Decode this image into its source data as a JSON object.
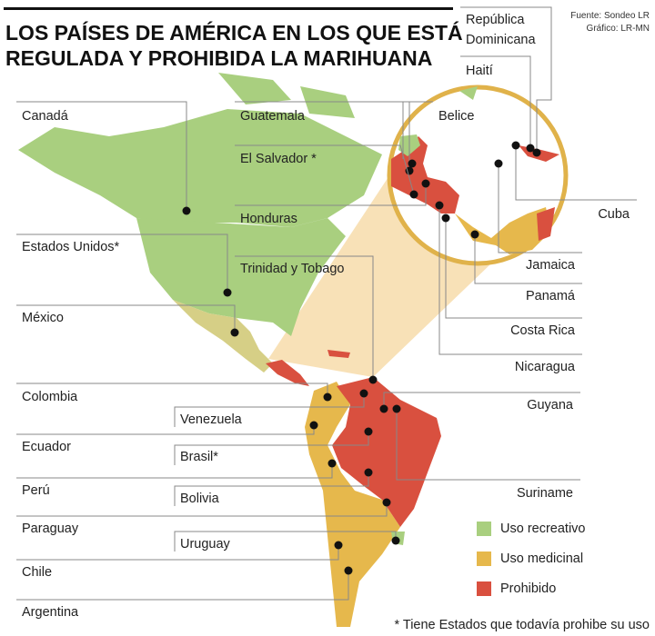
{
  "header": {
    "title_lines": [
      "LOS PAÍSES DE AMÉRICA EN LOS QUE ESTÁ",
      "REGULADA Y PROHIBIDA LA MARIHUANA"
    ],
    "source": "Fuente: Sondeo LR",
    "credit": "Gráfico: LR-MN"
  },
  "labels": [
    {
      "text": [
        "Canadá"
      ]
    },
    {
      "text": [
        "Estados Unidos*"
      ]
    },
    {
      "text": [
        "México"
      ]
    },
    {
      "text": [
        "Colombia"
      ]
    },
    {
      "text": [
        "Venezuela"
      ]
    },
    {
      "text": [
        "Ecuador"
      ]
    },
    {
      "text": [
        "Brasil*"
      ]
    },
    {
      "text": [
        "Perú"
      ]
    },
    {
      "text": [
        "Bolivia"
      ]
    },
    {
      "text": [
        "Paraguay"
      ]
    },
    {
      "text": [
        "Uruguay"
      ]
    },
    {
      "text": [
        "Chile"
      ]
    },
    {
      "text": [
        "Argentina"
      ]
    },
    {
      "text": [
        "Guatemala"
      ]
    },
    {
      "text": [
        "El Salvador *"
      ]
    },
    {
      "text": [
        "Honduras"
      ]
    },
    {
      "text": [
        "Trinidad y Tobago"
      ]
    },
    {
      "text": [
        "República",
        "Dominicana"
      ]
    },
    {
      "text": [
        "Haití"
      ]
    },
    {
      "text": [
        "Belice"
      ]
    },
    {
      "text": [
        "Cuba"
      ]
    },
    {
      "text": [
        "Jamaica"
      ]
    },
    {
      "text": [
        "Panamá"
      ]
    },
    {
      "text": [
        "Costa Rica"
      ]
    },
    {
      "text": [
        "Nicaragua"
      ]
    },
    {
      "text": [
        "Guyana"
      ]
    },
    {
      "text": [
        "Suriname"
      ]
    }
  ],
  "legend": [
    {
      "label": "Uso recreativo",
      "color": "#a9cf7f"
    },
    {
      "label": "Uso medicinal",
      "color": "#e6b84c"
    },
    {
      "label": "Prohibido",
      "color": "#d9503f"
    }
  ],
  "note": "* Tiene Estados que todavía prohibe su uso"
}
